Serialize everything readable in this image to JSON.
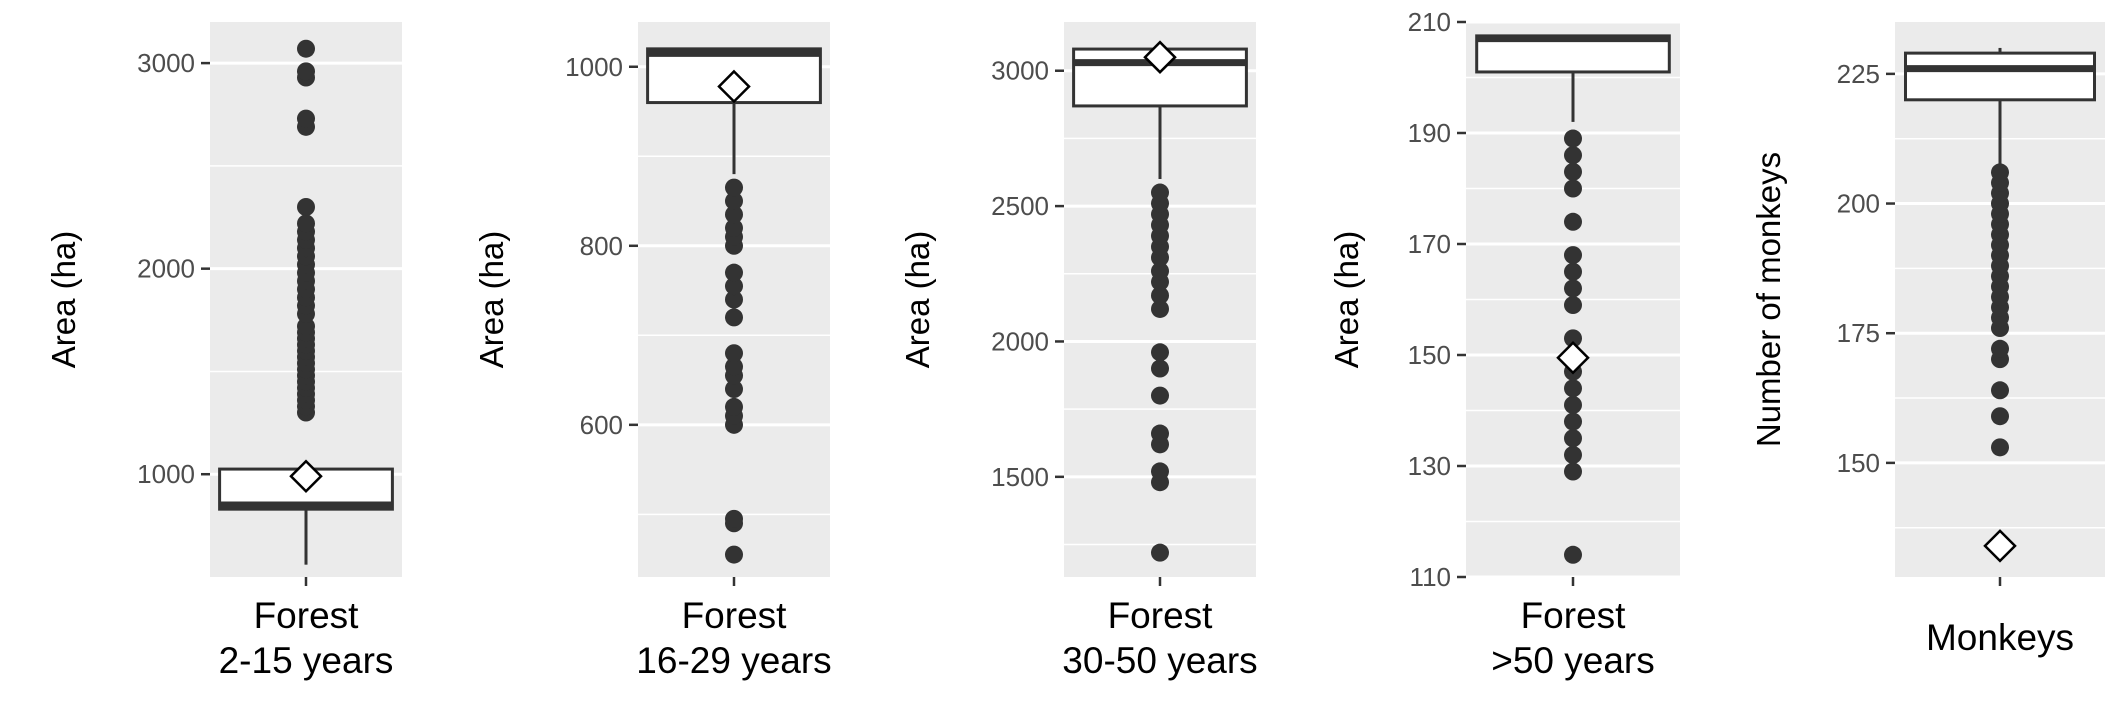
{
  "chart_data": [
    {
      "type": "box",
      "ylabel": "Area (ha)",
      "category_lines": [
        "Forest",
        "2-15 years"
      ],
      "ylim": [
        500,
        3200
      ],
      "yticks": [
        1000,
        2000,
        3000
      ],
      "yminor": [
        1500,
        2500
      ],
      "box": {
        "whisker_low": 560,
        "q1": 830,
        "median": 850,
        "q3": 1025,
        "whisker_high": 1050
      },
      "mean": 990,
      "outliers": [
        1300,
        1330,
        1360,
        1390,
        1420,
        1450,
        1480,
        1510,
        1540,
        1570,
        1600,
        1630,
        1660,
        1690,
        1720,
        1780,
        1820,
        1860,
        1900,
        1940,
        1980,
        2020,
        2060,
        2100,
        2140,
        2180,
        2220,
        2300,
        2690,
        2730,
        2930,
        2960,
        3070
      ]
    },
    {
      "type": "box",
      "ylabel": "Area (ha)",
      "category_lines": [
        "Forest",
        "16-29 years"
      ],
      "ylim": [
        430,
        1050
      ],
      "yticks": [
        600,
        800,
        1000
      ],
      "yminor": [
        500,
        700,
        900
      ],
      "box": {
        "whisker_low": 880,
        "q1": 960,
        "median": 1015,
        "q3": 1020,
        "whisker_high": 1020
      },
      "mean": 978,
      "outliers": [
        455,
        490,
        495,
        600,
        610,
        620,
        640,
        655,
        665,
        680,
        720,
        740,
        755,
        770,
        800,
        810,
        820,
        835,
        850,
        865
      ]
    },
    {
      "type": "box",
      "ylabel": "Area (ha)",
      "category_lines": [
        "Forest",
        "30-50 years"
      ],
      "ylim": [
        1130,
        3180
      ],
      "yticks": [
        1500,
        2000,
        2500,
        3000
      ],
      "yminor": [
        1250,
        1750,
        2250,
        2750
      ],
      "box": {
        "whisker_low": 2600,
        "q1": 2870,
        "median": 3030,
        "q3": 3080,
        "whisker_high": 3080
      },
      "mean": 3050,
      "outliers": [
        1220,
        1480,
        1520,
        1620,
        1660,
        1800,
        1900,
        1960,
        2120,
        2170,
        2220,
        2260,
        2310,
        2350,
        2390,
        2430,
        2470,
        2510,
        2550
      ]
    },
    {
      "type": "box",
      "ylabel": "Area (ha)",
      "category_lines": [
        "Forest",
        ">50 years"
      ],
      "ylim": [
        110,
        210
      ],
      "yticks": [
        110,
        130,
        150,
        170,
        190,
        210
      ],
      "yminor": [
        120,
        140,
        160,
        180,
        200
      ],
      "box": {
        "whisker_low": 192,
        "q1": 201,
        "median": 207,
        "q3": 207.5,
        "whisker_high": 207.5
      },
      "mean": 149.5,
      "outliers": [
        114,
        129,
        132,
        135,
        138,
        141,
        144,
        147,
        150,
        153,
        159,
        162,
        165,
        168,
        174,
        180,
        183,
        186,
        189
      ]
    },
    {
      "type": "box",
      "ylabel": "Number of monkeys",
      "category_lines": [
        "Monkeys"
      ],
      "ylim": [
        128,
        235
      ],
      "yticks": [
        150,
        175,
        200,
        225
      ],
      "yminor": [
        137.5,
        162.5,
        187.5,
        212.5
      ],
      "box": {
        "whisker_low": 206,
        "q1": 220,
        "median": 226,
        "q3": 229,
        "whisker_high": 230
      },
      "mean": 134,
      "outliers": [
        153,
        159,
        164,
        170,
        172,
        176,
        178,
        180,
        182,
        184,
        186,
        188,
        190,
        192,
        194,
        196,
        198,
        200,
        202,
        204,
        206
      ]
    }
  ]
}
